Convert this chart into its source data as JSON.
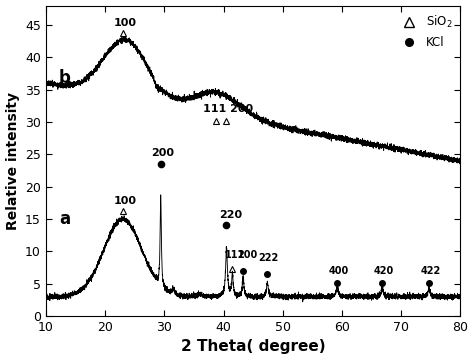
{
  "xlabel": "2 Theta( degree)",
  "ylabel": "Relative intensity",
  "xlim": [
    10,
    80
  ],
  "ylim": [
    0,
    48
  ],
  "yticks": [
    0,
    5,
    10,
    15,
    20,
    25,
    30,
    35,
    40,
    45
  ],
  "xticks": [
    10,
    20,
    30,
    40,
    50,
    60,
    70,
    80
  ],
  "background_color": "#ffffff",
  "line_color": "#000000"
}
